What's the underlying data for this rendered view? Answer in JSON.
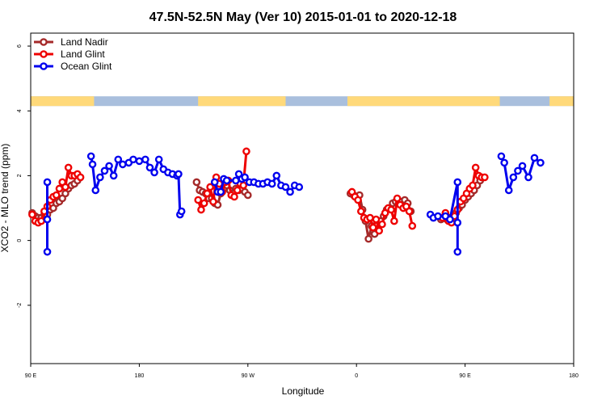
{
  "chart_data": {
    "type": "line",
    "title": "47.5N-52.5N May (Ver 10)   2015-01-01 to 2020-12-18",
    "xlabel": "Longitude",
    "ylabel": "XCO2 - MLO trend (ppm)",
    "xlim": [
      90,
      450
    ],
    "ylim": [
      -3.8,
      6.4
    ],
    "x_ticks": [
      {
        "value": 90,
        "label": "90 E"
      },
      {
        "value": 162,
        "label": "180"
      },
      {
        "value": 234,
        "label": "90 W"
      },
      {
        "value": 306,
        "label": "0"
      },
      {
        "value": 378,
        "label": "90 E"
      },
      {
        "value": 450,
        "label": "180"
      }
    ],
    "y_ticks": [
      {
        "value": -2,
        "label": "-2"
      },
      {
        "value": 0,
        "label": "0"
      },
      {
        "value": 2,
        "label": "2"
      },
      {
        "value": 4,
        "label": "4"
      },
      {
        "value": 6,
        "label": "6"
      }
    ],
    "legend_position": "top-left",
    "land_ocean_strip": {
      "y_range": [
        4.15,
        4.45
      ],
      "land_color": "#ffd97a",
      "ocean_color": "#a9bfdd",
      "land_segments": [
        [
          90,
          132
        ],
        [
          201,
          259
        ],
        [
          300,
          401
        ],
        [
          434,
          450
        ]
      ]
    },
    "series": [
      {
        "name": "Land Nadir",
        "color": "#a52a2a",
        "points": [
          [
            91,
            0.85
          ],
          [
            93,
            0.75
          ],
          [
            95,
            0.7
          ],
          [
            97,
            0.7
          ],
          [
            99,
            0.8
          ],
          [
            101,
            0.8
          ],
          [
            103,
            0.95
          ],
          [
            105,
            1.0
          ],
          [
            107,
            1.15
          ],
          [
            109,
            1.2
          ],
          [
            111,
            1.3
          ],
          [
            113,
            1.45
          ],
          [
            115,
            1.6
          ],
          [
            117,
            1.7
          ],
          [
            119,
            1.75
          ],
          [
            121,
            1.85
          ],
          [
            200,
            1.8
          ],
          [
            202,
            1.55
          ],
          [
            204,
            1.5
          ],
          [
            206,
            1.45
          ],
          [
            208,
            1.3
          ],
          [
            210,
            1.3
          ],
          [
            212,
            1.15
          ],
          [
            214,
            1.1
          ],
          [
            216,
            1.45
          ],
          [
            218,
            1.6
          ],
          [
            220,
            1.7
          ],
          [
            222,
            1.55
          ],
          [
            224,
            1.45
          ],
          [
            226,
            1.6
          ],
          [
            228,
            1.55
          ],
          [
            230,
            1.6
          ],
          [
            232,
            1.5
          ],
          [
            234,
            1.4
          ],
          [
            302,
            1.45
          ],
          [
            304,
            1.4
          ],
          [
            306,
            1.35
          ],
          [
            308,
            1.4
          ],
          [
            310,
            0.95
          ],
          [
            312,
            0.6
          ],
          [
            314,
            0.05
          ],
          [
            316,
            0.45
          ],
          [
            318,
            0.2
          ],
          [
            320,
            0.35
          ],
          [
            322,
            0.6
          ],
          [
            324,
            0.75
          ],
          [
            326,
            0.95
          ],
          [
            328,
            1.0
          ],
          [
            330,
            1.15
          ],
          [
            332,
            1.2
          ],
          [
            334,
            1.15
          ],
          [
            336,
            1.2
          ],
          [
            338,
            1.25
          ],
          [
            340,
            1.15
          ],
          [
            342,
            0.9
          ],
          [
            362,
            0.65
          ],
          [
            364,
            0.7
          ],
          [
            366,
            0.65
          ],
          [
            368,
            0.7
          ],
          [
            370,
            0.75
          ],
          [
            372,
            0.85
          ],
          [
            374,
            1.0
          ],
          [
            376,
            1.1
          ],
          [
            378,
            1.25
          ],
          [
            380,
            1.35
          ],
          [
            382,
            1.45
          ],
          [
            384,
            1.55
          ],
          [
            386,
            1.7
          ],
          [
            388,
            1.85
          ]
        ]
      },
      {
        "name": "Land Glint",
        "color": "#ee0000",
        "points": [
          [
            91,
            0.8
          ],
          [
            93,
            0.6
          ],
          [
            95,
            0.55
          ],
          [
            97,
            0.6
          ],
          [
            99,
            0.9
          ],
          [
            101,
            1.05
          ],
          [
            103,
            1.25
          ],
          [
            105,
            1.35
          ],
          [
            107,
            1.4
          ],
          [
            109,
            1.6
          ],
          [
            111,
            1.8
          ],
          [
            113,
            1.65
          ],
          [
            115,
            2.25
          ],
          [
            117,
            2.0
          ],
          [
            119,
            2.0
          ],
          [
            121,
            2.05
          ],
          [
            123,
            1.95
          ],
          [
            201,
            1.25
          ],
          [
            203,
            0.95
          ],
          [
            205,
            1.15
          ],
          [
            207,
            1.45
          ],
          [
            209,
            1.65
          ],
          [
            211,
            1.2
          ],
          [
            213,
            1.95
          ],
          [
            215,
            1.75
          ],
          [
            217,
            1.5
          ],
          [
            219,
            1.8
          ],
          [
            221,
            1.85
          ],
          [
            223,
            1.4
          ],
          [
            225,
            1.35
          ],
          [
            227,
            1.55
          ],
          [
            229,
            1.75
          ],
          [
            231,
            1.7
          ],
          [
            233,
            2.75
          ],
          [
            303,
            1.5
          ],
          [
            305,
            1.35
          ],
          [
            307,
            1.25
          ],
          [
            309,
            0.9
          ],
          [
            311,
            0.7
          ],
          [
            313,
            0.65
          ],
          [
            315,
            0.7
          ],
          [
            317,
            0.4
          ],
          [
            319,
            0.65
          ],
          [
            321,
            0.3
          ],
          [
            323,
            0.5
          ],
          [
            325,
            0.85
          ],
          [
            327,
            1.0
          ],
          [
            329,
            0.95
          ],
          [
            331,
            0.6
          ],
          [
            333,
            1.3
          ],
          [
            335,
            1.1
          ],
          [
            337,
            1.0
          ],
          [
            339,
            1.05
          ],
          [
            341,
            0.9
          ],
          [
            343,
            0.45
          ],
          [
            363,
            0.7
          ],
          [
            365,
            0.85
          ],
          [
            367,
            0.6
          ],
          [
            369,
            0.55
          ],
          [
            371,
            0.75
          ],
          [
            373,
            0.95
          ],
          [
            375,
            1.2
          ],
          [
            377,
            1.3
          ],
          [
            379,
            1.45
          ],
          [
            381,
            1.6
          ],
          [
            383,
            1.7
          ],
          [
            385,
            2.25
          ],
          [
            387,
            2.0
          ],
          [
            389,
            1.95
          ],
          [
            391,
            1.95
          ]
        ]
      },
      {
        "name": "Ocean Glint",
        "color": "#0000ee",
        "points": [
          [
            101,
            1.8
          ],
          [
            101,
            -0.35
          ],
          [
            101,
            0.65
          ],
          [
            130,
            2.6
          ],
          [
            131,
            2.35
          ],
          [
            133,
            1.55
          ],
          [
            136,
            1.95
          ],
          [
            139,
            2.15
          ],
          [
            142,
            2.3
          ],
          [
            145,
            2.0
          ],
          [
            148,
            2.5
          ],
          [
            151,
            2.35
          ],
          [
            155,
            2.4
          ],
          [
            158,
            2.5
          ],
          [
            162,
            2.45
          ],
          [
            166,
            2.5
          ],
          [
            169,
            2.25
          ],
          [
            172,
            2.1
          ],
          [
            175,
            2.5
          ],
          [
            178,
            2.2
          ],
          [
            181,
            2.1
          ],
          [
            184,
            2.05
          ],
          [
            187,
            2.0
          ],
          [
            188,
            2.05
          ],
          [
            189,
            0.8
          ],
          [
            190,
            0.9
          ],
          [
            212,
            1.8
          ],
          [
            214,
            1.5
          ],
          [
            216,
            1.5
          ],
          [
            218,
            1.9
          ],
          [
            220,
            1.85
          ],
          [
            226,
            1.85
          ],
          [
            228,
            2.05
          ],
          [
            230,
            1.9
          ],
          [
            232,
            1.95
          ],
          [
            235,
            1.8
          ],
          [
            238,
            1.8
          ],
          [
            241,
            1.75
          ],
          [
            244,
            1.75
          ],
          [
            247,
            1.8
          ],
          [
            250,
            1.75
          ],
          [
            253,
            2.0
          ],
          [
            256,
            1.7
          ],
          [
            259,
            1.65
          ],
          [
            262,
            1.5
          ],
          [
            265,
            1.7
          ],
          [
            268,
            1.65
          ],
          [
            355,
            0.8
          ],
          [
            357,
            0.7
          ],
          [
            360,
            0.75
          ],
          [
            365,
            0.75
          ],
          [
            368,
            0.65
          ],
          [
            373,
            1.8
          ],
          [
            373,
            -0.35
          ],
          [
            373,
            0.55
          ],
          [
            402,
            2.6
          ],
          [
            404,
            2.4
          ],
          [
            407,
            1.55
          ],
          [
            410,
            1.95
          ],
          [
            413,
            2.15
          ],
          [
            416,
            2.3
          ],
          [
            420,
            1.95
          ],
          [
            424,
            2.55
          ],
          [
            428,
            2.4
          ]
        ]
      }
    ]
  }
}
